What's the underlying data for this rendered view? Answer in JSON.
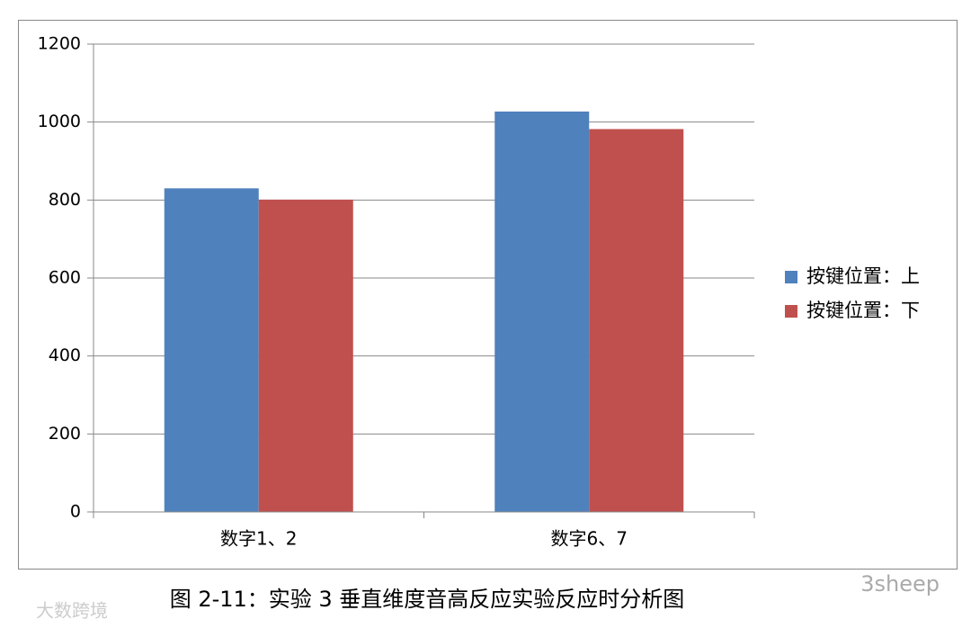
{
  "chart_data": {
    "type": "bar",
    "caption": "图 2-11：实验 3 垂直维度音高反应实验反应时分析图",
    "categories": [
      "数字1、2",
      "数字6、7"
    ],
    "series": [
      {
        "name": "按键位置：上",
        "color": "#4f81bd",
        "values": [
          830,
          1027
        ]
      },
      {
        "name": "按键位置：下",
        "color": "#c0504d",
        "values": [
          801,
          982
        ]
      }
    ],
    "ylim": [
      0,
      1200
    ],
    "yticks": [
      0,
      200,
      400,
      600,
      800,
      1000,
      1200
    ],
    "grid": true,
    "legend": "right",
    "watermarks": [
      "3sheep",
      "大数跨境"
    ]
  }
}
